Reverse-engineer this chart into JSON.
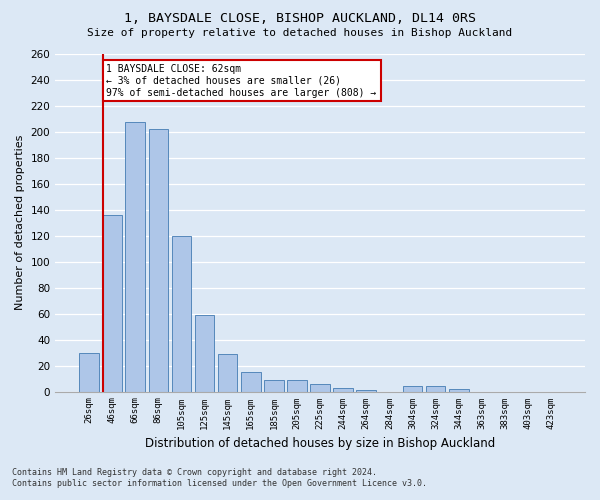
{
  "title_line1": "1, BAYSDALE CLOSE, BISHOP AUCKLAND, DL14 0RS",
  "title_line2": "Size of property relative to detached houses in Bishop Auckland",
  "xlabel": "Distribution of detached houses by size in Bishop Auckland",
  "ylabel": "Number of detached properties",
  "categories": [
    "26sqm",
    "46sqm",
    "66sqm",
    "86sqm",
    "105sqm",
    "125sqm",
    "145sqm",
    "165sqm",
    "185sqm",
    "205sqm",
    "225sqm",
    "244sqm",
    "264sqm",
    "284sqm",
    "304sqm",
    "324sqm",
    "344sqm",
    "363sqm",
    "383sqm",
    "403sqm",
    "423sqm"
  ],
  "values": [
    30,
    136,
    208,
    202,
    120,
    59,
    29,
    15,
    9,
    9,
    6,
    3,
    1,
    0,
    4,
    4,
    2,
    0,
    0,
    0,
    0
  ],
  "bar_color": "#aec6e8",
  "bar_edge_color": "#5588bb",
  "vline_color": "#cc0000",
  "annotation_text": "1 BAYSDALE CLOSE: 62sqm\n← 3% of detached houses are smaller (26)\n97% of semi-detached houses are larger (808) →",
  "annotation_box_color": "#ffffff",
  "annotation_box_edge": "#cc0000",
  "ylim": [
    0,
    260
  ],
  "yticks": [
    0,
    20,
    40,
    60,
    80,
    100,
    120,
    140,
    160,
    180,
    200,
    220,
    240,
    260
  ],
  "background_color": "#dce8f5",
  "grid_color": "#ffffff",
  "footer_line1": "Contains HM Land Registry data © Crown copyright and database right 2024.",
  "footer_line2": "Contains public sector information licensed under the Open Government Licence v3.0."
}
